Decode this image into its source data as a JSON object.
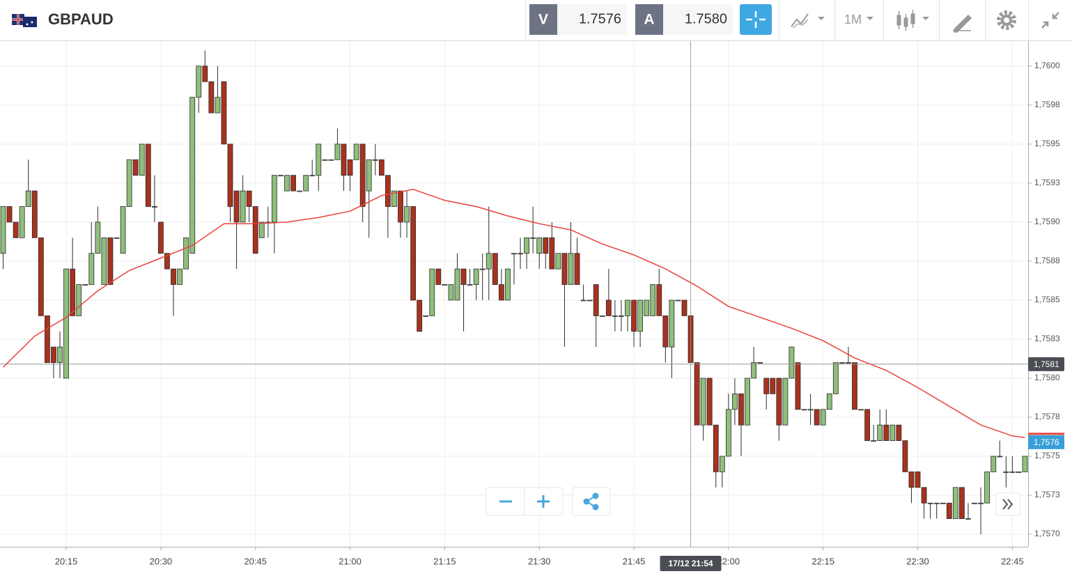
{
  "header": {
    "symbol": "GBPAUD",
    "bid_tag": "V",
    "bid": "1.7576",
    "ask_tag": "A",
    "ask": "1.7580",
    "timeframe": "1M"
  },
  "chart_data": {
    "type": "candlestick",
    "x": [
      "20:05",
      "20:06",
      "20:07",
      "20:08",
      "20:09",
      "20:10",
      "20:11",
      "20:12",
      "20:13",
      "20:14",
      "20:15",
      "20:16",
      "20:17",
      "20:18",
      "20:19",
      "20:20",
      "20:21",
      "20:22",
      "20:23",
      "20:24",
      "20:25",
      "20:26",
      "20:27",
      "20:28",
      "20:29",
      "20:30",
      "20:31",
      "20:32",
      "20:33",
      "20:34",
      "20:35",
      "20:36",
      "20:37",
      "20:38",
      "20:39",
      "20:40",
      "20:41",
      "20:42",
      "20:43",
      "20:44",
      "20:45",
      "20:46",
      "20:47",
      "20:48",
      "20:49",
      "20:50",
      "20:51",
      "20:52",
      "20:53",
      "20:54",
      "20:55",
      "20:56",
      "20:57",
      "20:58",
      "20:59",
      "21:00",
      "21:01",
      "21:02",
      "21:03",
      "21:04",
      "21:05",
      "21:06",
      "21:07",
      "21:08",
      "21:09",
      "21:10",
      "21:11",
      "21:12",
      "21:13",
      "21:14",
      "21:15",
      "21:16",
      "21:17",
      "21:18",
      "21:19",
      "21:20",
      "21:21",
      "21:22",
      "21:23",
      "21:24",
      "21:25",
      "21:26",
      "21:27",
      "21:28",
      "21:29",
      "21:30",
      "21:31",
      "21:32",
      "21:33",
      "21:34",
      "21:35",
      "21:36",
      "21:37",
      "21:38",
      "21:39",
      "21:40",
      "21:41",
      "21:42",
      "21:43",
      "21:44",
      "21:45",
      "21:46",
      "21:47",
      "21:48",
      "21:49",
      "21:50",
      "21:51",
      "21:52",
      "21:53",
      "21:54",
      "21:55",
      "21:56",
      "21:57",
      "21:58",
      "21:59",
      "22:00",
      "22:01",
      "22:02",
      "22:03",
      "22:04",
      "22:05",
      "22:06",
      "22:07",
      "22:08",
      "22:09",
      "22:10",
      "22:11",
      "22:12",
      "22:13",
      "22:14",
      "22:15",
      "22:16",
      "22:17",
      "22:18",
      "22:19",
      "22:20",
      "22:21",
      "22:22",
      "22:23",
      "22:24",
      "22:25",
      "22:26",
      "22:27",
      "22:28",
      "22:29",
      "22:30",
      "22:31",
      "22:32",
      "22:33",
      "22:34",
      "22:35",
      "22:36",
      "22:37",
      "22:38",
      "22:39",
      "22:40",
      "22:41",
      "22:42",
      "22:43",
      "22:44",
      "22:45",
      "22:46",
      "22:47"
    ],
    "open": [
      1.7588,
      1.7591,
      1.759,
      1.7589,
      1.7591,
      1.7592,
      1.7589,
      1.7584,
      1.7582,
      1.7581,
      1.758,
      1.7587,
      1.7584,
      1.7586,
      1.7586,
      1.7588,
      1.7586,
      1.7589,
      1.7589,
      1.7588,
      1.7591,
      1.7594,
      1.7593,
      1.7595,
      1.7591,
      1.759,
      1.7588,
      1.7587,
      1.7586,
      1.7587,
      1.7588,
      1.7598,
      1.76,
      1.7599,
      1.7597,
      1.7599,
      1.7595,
      1.7592,
      1.759,
      1.7592,
      1.7591,
      1.7589,
      1.759,
      1.759,
      1.7593,
      1.7592,
      1.7593,
      1.7592,
      1.7592,
      1.7593,
      1.7593,
      1.7594,
      1.7594,
      1.7594,
      1.7595,
      1.7594,
      1.7594,
      1.7595,
      1.7592,
      1.7594,
      1.7594,
      1.7593,
      1.7591,
      1.7592,
      1.759,
      1.7591,
      1.7585,
      1.7584,
      1.7584,
      1.7587,
      1.7586,
      1.7585,
      1.7585,
      1.7587,
      1.7586,
      1.7586,
      1.7587,
      1.7587,
      1.7588,
      1.7586,
      1.7585,
      1.7588,
      1.7588,
      1.7588,
      1.7589,
      1.7588,
      1.7589,
      1.7589,
      1.7587,
      1.7588,
      1.7586,
      1.7588,
      1.7585,
      1.7585,
      1.7586,
      1.7584,
      1.7585,
      1.7584,
      1.7584,
      1.7584,
      1.7585,
      1.7583,
      1.7584,
      1.7584,
      1.7586,
      1.7584,
      1.7582,
      1.7585,
      1.7585,
      1.7584,
      1.7581,
      1.7577,
      1.758,
      1.7577,
      1.7574,
      1.7575,
      1.7578,
      1.7579,
      1.7577,
      1.758,
      1.7581,
      1.758,
      1.758,
      1.758,
      1.7577,
      1.758,
      1.7581,
      1.7578,
      1.7578,
      1.7578,
      1.7577,
      1.7578,
      1.7579,
      1.7581,
      1.7581,
      1.7581,
      1.7578,
      1.7578,
      1.7576,
      1.7576,
      1.7577,
      1.7576,
      1.7577,
      1.7576,
      1.7574,
      1.7574,
      1.7573,
      1.7572,
      1.7572,
      1.7572,
      1.7572,
      1.7571,
      1.7573,
      1.7571,
      1.7572,
      1.7572,
      1.7572,
      1.7574,
      1.7575,
      1.7574,
      1.7574,
      1.7574,
      1.7574
    ],
    "high": [
      1.7591,
      1.7591,
      1.759,
      1.7591,
      1.7594,
      1.7592,
      1.7589,
      1.7584,
      1.7582,
      1.7583,
      1.7587,
      1.7589,
      1.7586,
      1.7586,
      1.759,
      1.7591,
      1.7589,
      1.7589,
      1.7589,
      1.7591,
      1.7594,
      1.7594,
      1.7595,
      1.7595,
      1.7593,
      1.759,
      1.7588,
      1.7587,
      1.7587,
      1.7589,
      1.7598,
      1.76,
      1.7601,
      1.7599,
      1.76,
      1.7599,
      1.7595,
      1.7592,
      1.7593,
      1.7592,
      1.7591,
      1.759,
      1.7591,
      1.7593,
      1.7593,
      1.7593,
      1.7593,
      1.7592,
      1.7593,
      1.7594,
      1.7595,
      1.7594,
      1.7594,
      1.7596,
      1.7595,
      1.7594,
      1.7595,
      1.7595,
      1.7594,
      1.7595,
      1.7594,
      1.7593,
      1.7592,
      1.7592,
      1.7592,
      1.7591,
      1.7585,
      1.7584,
      1.7587,
      1.7587,
      1.7586,
      1.7586,
      1.7588,
      1.7587,
      1.7587,
      1.7587,
      1.7588,
      1.7591,
      1.7588,
      1.7587,
      1.7587,
      1.7588,
      1.7589,
      1.7589,
      1.7591,
      1.7589,
      1.7589,
      1.759,
      1.7588,
      1.7588,
      1.759,
      1.7589,
      1.7586,
      1.7585,
      1.7586,
      1.7584,
      1.7587,
      1.7585,
      1.7585,
      1.7585,
      1.7585,
      1.7585,
      1.7585,
      1.7586,
      1.7587,
      1.7584,
      1.7585,
      1.7585,
      1.7585,
      1.7584,
      1.7581,
      1.758,
      1.758,
      1.7577,
      1.7575,
      1.7579,
      1.758,
      1.7579,
      1.758,
      1.7582,
      1.7581,
      1.758,
      1.758,
      1.758,
      1.758,
      1.7582,
      1.7581,
      1.7578,
      1.7579,
      1.7578,
      1.7578,
      1.7579,
      1.7581,
      1.7581,
      1.7582,
      1.7581,
      1.7578,
      1.7578,
      1.7577,
      1.7578,
      1.7578,
      1.7577,
      1.7577,
      1.7576,
      1.7574,
      1.7574,
      1.7573,
      1.7572,
      1.7572,
      1.7572,
      1.7572,
      1.7573,
      1.7573,
      1.7572,
      1.7572,
      1.7573,
      1.7574,
      1.7575,
      1.7576,
      1.7575,
      1.7575,
      1.7574,
      1.7575
    ],
    "low": [
      1.7587,
      1.759,
      1.7589,
      1.7589,
      1.7591,
      1.7589,
      1.7584,
      1.7581,
      1.758,
      1.758,
      1.758,
      1.7584,
      1.7584,
      1.7586,
      1.7586,
      1.7588,
      1.7586,
      1.7586,
      1.7589,
      1.7588,
      1.7591,
      1.7593,
      1.7593,
      1.7591,
      1.759,
      1.7588,
      1.7587,
      1.7584,
      1.7586,
      1.7587,
      1.7588,
      1.7597,
      1.7599,
      1.7597,
      1.7597,
      1.7595,
      1.759,
      1.7587,
      1.759,
      1.759,
      1.7588,
      1.7589,
      1.7589,
      1.7588,
      1.7593,
      1.7592,
      1.7592,
      1.7592,
      1.7592,
      1.7593,
      1.7592,
      1.7594,
      1.7594,
      1.7594,
      1.7592,
      1.7592,
      1.7594,
      1.759,
      1.7589,
      1.7593,
      1.7593,
      1.7589,
      1.7591,
      1.7589,
      1.7589,
      1.7585,
      1.7583,
      1.7584,
      1.7584,
      1.7586,
      1.7586,
      1.7585,
      1.7585,
      1.7583,
      1.7586,
      1.7585,
      1.7585,
      1.7585,
      1.7586,
      1.7585,
      1.7585,
      1.7586,
      1.7587,
      1.7587,
      1.7588,
      1.7587,
      1.7587,
      1.7587,
      1.7587,
      1.7582,
      1.7586,
      1.7586,
      1.7585,
      1.7585,
      1.7582,
      1.7584,
      1.7584,
      1.7583,
      1.7583,
      1.7583,
      1.7582,
      1.7582,
      1.7584,
      1.7584,
      1.7584,
      1.7581,
      1.758,
      1.7585,
      1.7584,
      1.7581,
      1.7577,
      1.7576,
      1.7577,
      1.7573,
      1.7573,
      1.7575,
      1.7577,
      1.7575,
      1.7577,
      1.758,
      1.7581,
      1.7578,
      1.7579,
      1.7576,
      1.7577,
      1.758,
      1.7578,
      1.7578,
      1.7577,
      1.7577,
      1.7577,
      1.7578,
      1.7579,
      1.7581,
      1.7581,
      1.7578,
      1.7578,
      1.7576,
      1.7576,
      1.7576,
      1.7576,
      1.7576,
      1.7576,
      1.7574,
      1.7572,
      1.7573,
      1.7571,
      1.7571,
      1.7571,
      1.7572,
      1.7571,
      1.7571,
      1.7571,
      1.7571,
      1.7572,
      1.757,
      1.7572,
      1.7574,
      1.7575,
      1.7573,
      1.7574,
      1.7574,
      1.7574
    ],
    "close": [
      1.7591,
      1.759,
      1.7589,
      1.7591,
      1.7592,
      1.7589,
      1.7584,
      1.7581,
      1.7581,
      1.7582,
      1.7587,
      1.7584,
      1.7586,
      1.7586,
      1.7588,
      1.759,
      1.7589,
      1.7586,
      1.7589,
      1.7591,
      1.7594,
      1.7593,
      1.7595,
      1.7591,
      1.7591,
      1.7588,
      1.7587,
      1.7586,
      1.7587,
      1.7589,
      1.7598,
      1.76,
      1.7599,
      1.7597,
      1.7598,
      1.7595,
      1.7591,
      1.759,
      1.7592,
      1.7591,
      1.7588,
      1.759,
      1.759,
      1.7593,
      1.7593,
      1.7593,
      1.7592,
      1.7592,
      1.7593,
      1.7593,
      1.7595,
      1.7594,
      1.7594,
      1.7595,
      1.7593,
      1.7593,
      1.7595,
      1.7591,
      1.7594,
      1.7594,
      1.7593,
      1.7591,
      1.7592,
      1.759,
      1.7591,
      1.7585,
      1.7583,
      1.7584,
      1.7587,
      1.7586,
      1.7586,
      1.7586,
      1.7587,
      1.7586,
      1.7586,
      1.7587,
      1.7587,
      1.7588,
      1.7586,
      1.7585,
      1.7587,
      1.7588,
      1.7588,
      1.7589,
      1.7589,
      1.7589,
      1.7588,
      1.7587,
      1.7588,
      1.7586,
      1.7588,
      1.7586,
      1.7585,
      1.7585,
      1.7584,
      1.7584,
      1.7584,
      1.7584,
      1.7584,
      1.7585,
      1.7583,
      1.7585,
      1.7585,
      1.7586,
      1.7584,
      1.7582,
      1.7585,
      1.7585,
      1.7584,
      1.7581,
      1.7577,
      1.758,
      1.7577,
      1.7574,
      1.7575,
      1.7578,
      1.7579,
      1.7577,
      1.758,
      1.7581,
      1.7581,
      1.7579,
      1.7579,
      1.7577,
      1.758,
      1.7582,
      1.7578,
      1.7578,
      1.7578,
      1.7577,
      1.7578,
      1.7579,
      1.7581,
      1.7581,
      1.7581,
      1.7578,
      1.7578,
      1.7576,
      1.7576,
      1.7577,
      1.7576,
      1.7577,
      1.7576,
      1.7574,
      1.7573,
      1.7573,
      1.7572,
      1.7572,
      1.7572,
      1.7572,
      1.7571,
      1.7573,
      1.7571,
      1.7571,
      1.7572,
      1.7572,
      1.7574,
      1.7575,
      1.7575,
      1.7574,
      1.7574,
      1.7574,
      1.7575
    ],
    "up_color": "#8fbf7c",
    "down_color": "#a8321e",
    "outline_color": "#2a2a2a",
    "moving_average": {
      "color": "#e8423c",
      "x": [
        "20:05",
        "20:10",
        "20:15",
        "20:20",
        "20:25",
        "20:30",
        "20:35",
        "20:40",
        "20:45",
        "20:50",
        "20:55",
        "21:00",
        "21:05",
        "21:10",
        "21:15",
        "21:20",
        "21:25",
        "21:30",
        "21:35",
        "21:40",
        "21:45",
        "21:50",
        "21:55",
        "22:00",
        "22:05",
        "22:10",
        "22:15",
        "22:20",
        "22:25",
        "22:30",
        "22:35",
        "22:40",
        "22:45",
        "22:47"
      ],
      "values": [
        1.75807,
        1.75827,
        1.75839,
        1.75856,
        1.75869,
        1.75877,
        1.75885,
        1.75899,
        1.75899,
        1.759,
        1.75903,
        1.75907,
        1.75917,
        1.75921,
        1.75914,
        1.7591,
        1.75904,
        1.75899,
        1.75895,
        1.75886,
        1.75879,
        1.7587,
        1.75859,
        1.75846,
        1.75839,
        1.75832,
        1.75824,
        1.75813,
        1.75805,
        1.75794,
        1.75782,
        1.7577,
        1.75763,
        1.75762
      ]
    },
    "ylim": [
      1.75692,
      1.76016
    ],
    "yticks": [
      {
        "value": 1.76,
        "label": "1,7600"
      },
      {
        "value": 1.75975,
        "label": "1,7598"
      },
      {
        "value": 1.7595,
        "label": "1,7595"
      },
      {
        "value": 1.75925,
        "label": "1,7593"
      },
      {
        "value": 1.759,
        "label": "1,7590"
      },
      {
        "value": 1.75875,
        "label": "1,7588"
      },
      {
        "value": 1.7585,
        "label": "1,7585"
      },
      {
        "value": 1.75825,
        "label": "1,7583"
      },
      {
        "value": 1.758,
        "label": "1,7580"
      },
      {
        "value": 1.75775,
        "label": "1,7578"
      },
      {
        "value": 1.7575,
        "label": "1,7575"
      },
      {
        "value": 1.75725,
        "label": "1,7573"
      },
      {
        "value": 1.757,
        "label": "1,7570"
      }
    ],
    "xticks": [
      "20:15",
      "20:30",
      "20:45",
      "21:00",
      "21:15",
      "21:30",
      "21:45",
      "22:00",
      "22:15",
      "22:30",
      "22:45"
    ],
    "grid": true,
    "last_price": {
      "value": 1.75759,
      "label": "1,7576",
      "color": "#3a9fd8"
    },
    "crosshair": {
      "price": {
        "value": 1.75809,
        "label": "1,7581"
      },
      "time": "17/12 21:54"
    }
  }
}
